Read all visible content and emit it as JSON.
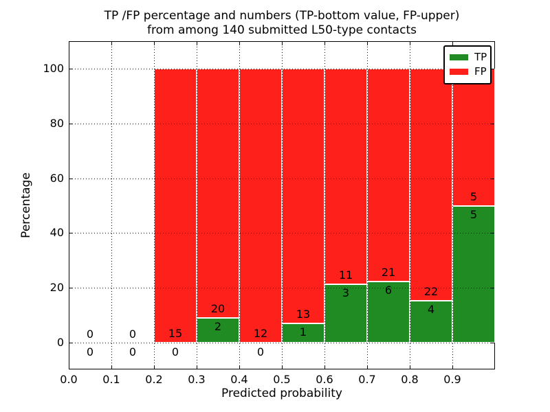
{
  "title": {
    "line1": "TP /FP percentage and numbers (TP-bottom value, FP-upper)",
    "line2": "from among 140 submitted L50-type contacts"
  },
  "axes": {
    "xlabel": "Predicted probability",
    "ylabel": "Percentage"
  },
  "legend": {
    "position": "upper right",
    "items": [
      {
        "label": "TP",
        "color": "#208b22"
      },
      {
        "label": "FP",
        "color": "#fe201b"
      }
    ]
  },
  "chart_data": {
    "type": "bar",
    "stacked": true,
    "normalized_to_percent": true,
    "title": "TP /FP percentage and numbers (TP-bottom value, FP-upper) from among 140 submitted L50-type contacts",
    "xlabel": "Predicted probability",
    "ylabel": "Percentage",
    "xlim": [
      0.0,
      1.0
    ],
    "ylim": [
      -10,
      110
    ],
    "grid": true,
    "grid_style": "dotted",
    "legend_position": "upper right",
    "total_contacts": 140,
    "bin_width": 0.1,
    "categories": [
      "0.0-0.1",
      "0.1-0.2",
      "0.2-0.3",
      "0.3-0.4",
      "0.4-0.5",
      "0.5-0.6",
      "0.6-0.7",
      "0.7-0.8",
      "0.8-0.9",
      "0.9-1.0"
    ],
    "bin_starts": [
      0.0,
      0.1,
      0.2,
      0.3,
      0.4,
      0.5,
      0.6,
      0.7,
      0.8,
      0.9
    ],
    "series": [
      {
        "name": "TP",
        "color": "#208b22",
        "counts": [
          0,
          0,
          0,
          2,
          0,
          1,
          3,
          6,
          4,
          5
        ]
      },
      {
        "name": "FP",
        "color": "#fe201b",
        "counts": [
          0,
          0,
          15,
          20,
          12,
          13,
          11,
          21,
          22,
          5
        ]
      }
    ],
    "tp_percent_of_bin": [
      null,
      null,
      0,
      9.09,
      0,
      7.14,
      21.43,
      22.22,
      15.38,
      50.0
    ],
    "xticks": [
      "0.0",
      "0.1",
      "0.2",
      "0.3",
      "0.4",
      "0.5",
      "0.6",
      "0.7",
      "0.8",
      "0.9"
    ],
    "yticks": [
      0,
      20,
      40,
      60,
      80,
      100
    ]
  }
}
